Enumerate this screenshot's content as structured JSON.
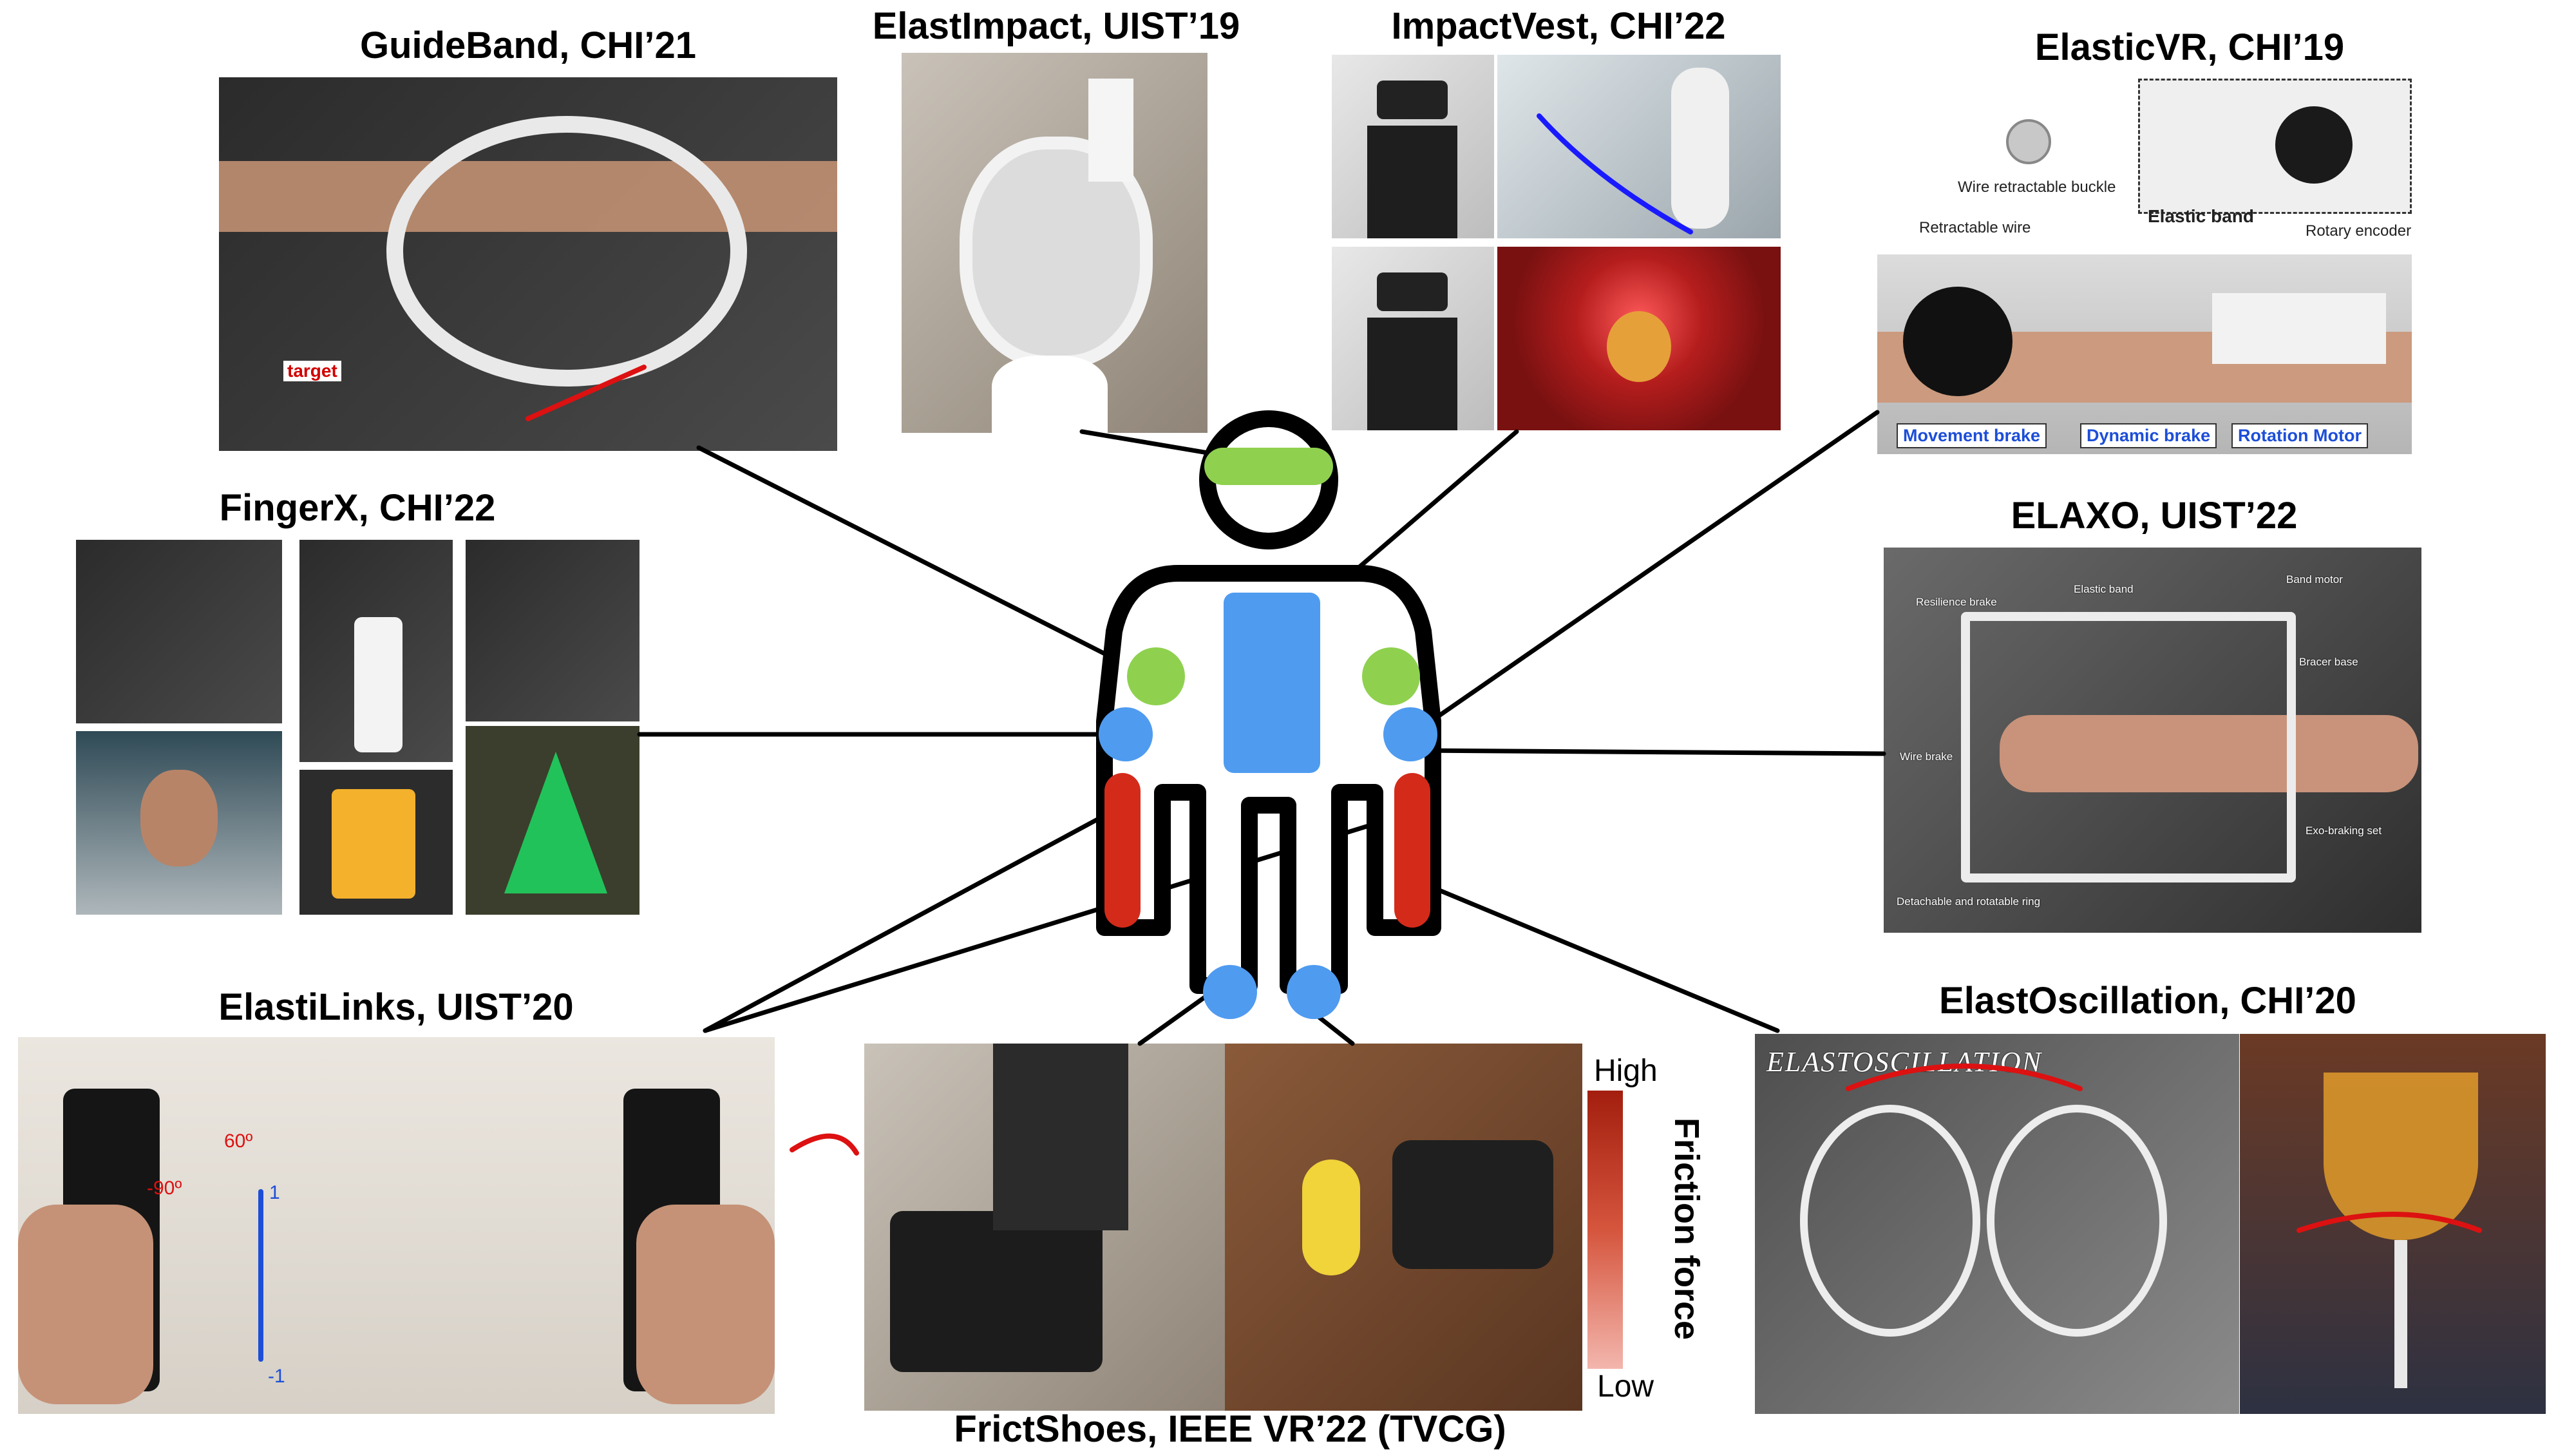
{
  "titles": {
    "guideband": "GuideBand, CHI’21",
    "elastimpact": "ElastImpact, UIST’19",
    "impactvest": "ImpactVest, CHI’22",
    "elasticvr": "ElasticVR, CHI’19",
    "fingerx": "FingerX, CHI’22",
    "elaxo": "ELAXO, UIST’22",
    "elastilinks": "ElastiLinks, UIST’20",
    "frictshoes": "FrictShoes, IEEE VR’22 (TVCG)",
    "elastoscillation": "ElastOscillation, CHI’20"
  },
  "guideband": {
    "target_label": "target"
  },
  "elasticvr": {
    "labels": {
      "buckle": "Wire retractable buckle",
      "elastic_band": "Elastic band",
      "retractable_wire": "Retractable wire",
      "rotary_encoder": "Rotary encoder",
      "movement_brake": "Movement brake",
      "dynamic_brake": "Dynamic brake",
      "rotation_motor": "Rotation Motor"
    }
  },
  "elaxo": {
    "labels": {
      "resilience_brake": "Resilience brake",
      "elastic_band": "Elastic band",
      "band_motor": "Band motor",
      "bracer_base": "Bracer base",
      "wire_brake": "Wire brake",
      "exo_braking_set": "Exo-braking set",
      "detachable_ring": "Detachable and rotatable ring"
    }
  },
  "elastilinks": {
    "angle_60": "60º",
    "angle_neg90": "-90º",
    "pos_one": "1",
    "neg_one": "-1"
  },
  "frictshoes": {
    "legend_high": "High",
    "legend_low": "Low",
    "legend_title": "Friction force"
  },
  "elastoscillation": {
    "overlay_title": "ELASTOSCILLATION"
  },
  "colors": {
    "head_band": "#8fd14f",
    "torso": "#4f9bf0",
    "shoulder": "#8fd14f",
    "joint": "#4f9bf0",
    "forearm": "#d42a1a",
    "outline": "#000000"
  },
  "icons": [
    "human-figure-icon",
    "arrow-icon"
  ]
}
